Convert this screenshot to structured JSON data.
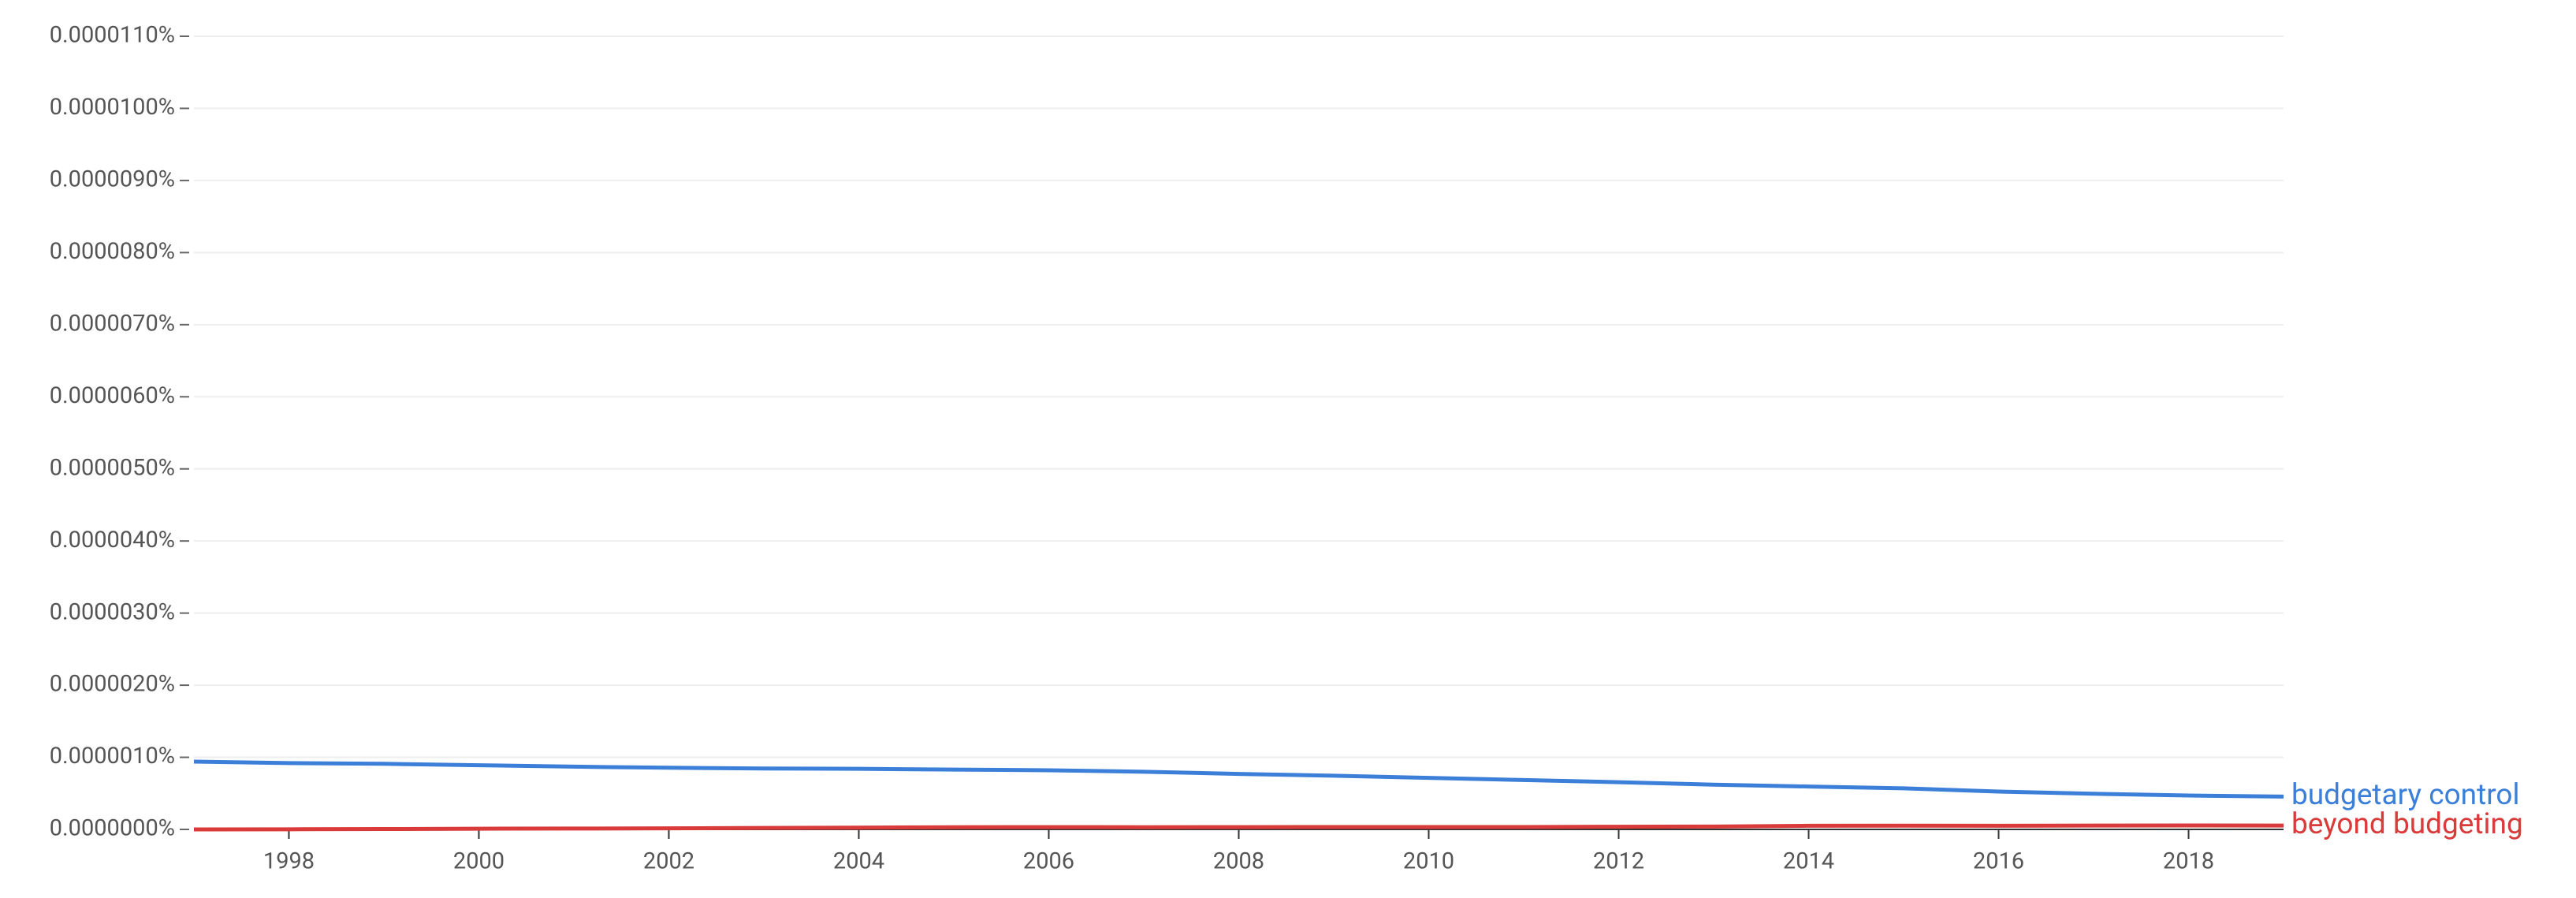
{
  "chart_data": {
    "type": "line",
    "x": [
      1997,
      1998,
      1999,
      2000,
      2001,
      2002,
      2003,
      2004,
      2005,
      2006,
      2007,
      2008,
      2009,
      2010,
      2011,
      2012,
      2013,
      2014,
      2015,
      2016,
      2017,
      2018,
      2019
    ],
    "series": [
      {
        "name": "budgetary control",
        "color": "#3b7fd9",
        "values": [
          9.4e-07,
          9.2e-07,
          9.1e-07,
          8.9e-07,
          8.7e-07,
          8.55e-07,
          8.45e-07,
          8.4e-07,
          8.3e-07,
          8.2e-07,
          8e-07,
          7.7e-07,
          7.45e-07,
          7.15e-07,
          6.85e-07,
          6.55e-07,
          6.2e-07,
          5.95e-07,
          5.7e-07,
          5.25e-07,
          4.95e-07,
          4.7e-07,
          4.55e-07
        ]
      },
      {
        "name": "beyond budgeting",
        "color": "#d93a3a",
        "values": [
          0,
          2e-09,
          5e-09,
          1e-08,
          1.2e-08,
          1.5e-08,
          2e-08,
          2.5e-08,
          3e-08,
          3.2e-08,
          3e-08,
          3.2e-08,
          3.3e-08,
          3.3e-08,
          3.3e-08,
          3.7e-08,
          4e-08,
          5e-08,
          5.2e-08,
          5e-08,
          5.3e-08,
          5.5e-08,
          5.3e-08
        ]
      }
    ],
    "xlim": [
      1997,
      2019
    ],
    "xticks": [
      1998,
      2000,
      2002,
      2004,
      2006,
      2008,
      2010,
      2012,
      2014,
      2016,
      2018
    ],
    "ylim": [
      0,
      1.1e-05
    ],
    "yticks": [
      {
        "value": 0,
        "label": "0.0000000%"
      },
      {
        "value": 1e-06,
        "label": "0.0000010%"
      },
      {
        "value": 2e-06,
        "label": "0.0000020%"
      },
      {
        "value": 3e-06,
        "label": "0.0000030%"
      },
      {
        "value": 4e-06,
        "label": "0.0000040%"
      },
      {
        "value": 5e-06,
        "label": "0.0000050%"
      },
      {
        "value": 6e-06,
        "label": "0.0000060%"
      },
      {
        "value": 7e-06,
        "label": "0.0000070%"
      },
      {
        "value": 8e-06,
        "label": "0.0000080%"
      },
      {
        "value": 9e-06,
        "label": "0.0000090%"
      },
      {
        "value": 1e-05,
        "label": "0.0000100%"
      },
      {
        "value": 1.1e-05,
        "label": "0.0000110%"
      }
    ],
    "grid": true
  }
}
